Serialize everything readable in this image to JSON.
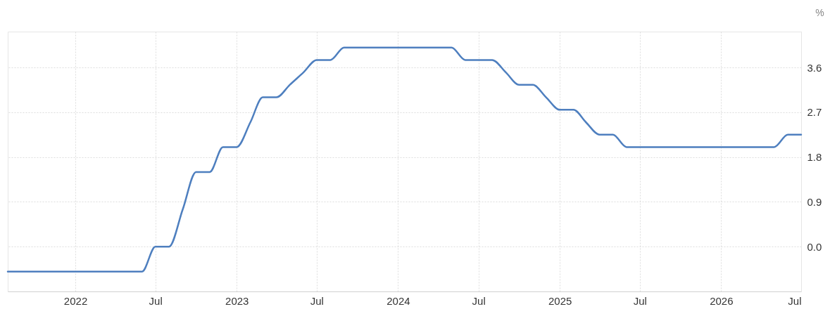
{
  "chart_data": {
    "type": "line",
    "ylabel": "%",
    "x": [
      "2021-08",
      "2021-09",
      "2021-10",
      "2021-11",
      "2021-12",
      "2022-01",
      "2022-02",
      "2022-03",
      "2022-04",
      "2022-05",
      "2022-06",
      "2022-07",
      "2022-08",
      "2022-09",
      "2022-10",
      "2022-11",
      "2022-12",
      "2023-01",
      "2023-02",
      "2023-03",
      "2023-04",
      "2023-05",
      "2023-06",
      "2023-07",
      "2023-08",
      "2023-09",
      "2023-10",
      "2023-11",
      "2023-12",
      "2024-01",
      "2024-02",
      "2024-03",
      "2024-04",
      "2024-05",
      "2024-06",
      "2024-07",
      "2024-08",
      "2024-09",
      "2024-10",
      "2024-11",
      "2024-12",
      "2025-01",
      "2025-02",
      "2025-03",
      "2025-04",
      "2025-05",
      "2025-06",
      "2025-07",
      "2025-08",
      "2025-09",
      "2025-10",
      "2025-11",
      "2025-12",
      "2026-01",
      "2026-02",
      "2026-03",
      "2026-04",
      "2026-05",
      "2026-06",
      "2026-07"
    ],
    "series": [
      {
        "color": "#4e7fbf",
        "values": [
          -0.5,
          -0.5,
          -0.5,
          -0.5,
          -0.5,
          -0.5,
          -0.5,
          -0.5,
          -0.5,
          -0.5,
          -0.5,
          0,
          0,
          0.75,
          1.5,
          1.5,
          2.0,
          2.0,
          2.5,
          3.0,
          3.0,
          3.25,
          3.5,
          3.75,
          3.75,
          4.0,
          4.0,
          4.0,
          4.0,
          4.0,
          4.0,
          4.0,
          4.0,
          4.0,
          3.75,
          3.75,
          3.75,
          3.5,
          3.25,
          3.25,
          3.0,
          2.75,
          2.75,
          2.5,
          2.25,
          2.25,
          2.0,
          2.0,
          2.0,
          2.0,
          2.0,
          2.0,
          2.0,
          2.0,
          2.0,
          2.0,
          2.0,
          2.0,
          2.25,
          2.25
        ]
      }
    ],
    "xlim": [
      "2021-08",
      "2026-07"
    ],
    "ylim": [
      -0.9,
      4.32
    ],
    "xticks": [
      {
        "value": "2022-01",
        "label": "2022"
      },
      {
        "value": "2022-07",
        "label": "Jul"
      },
      {
        "value": "2023-01",
        "label": "2023"
      },
      {
        "value": "2023-07",
        "label": "Jul"
      },
      {
        "value": "2024-01",
        "label": "2024"
      },
      {
        "value": "2024-07",
        "label": "Jul"
      },
      {
        "value": "2025-01",
        "label": "2025"
      },
      {
        "value": "2025-07",
        "label": "Jul"
      },
      {
        "value": "2026-01",
        "label": "2026"
      },
      {
        "value": "2026-07",
        "label": "Jul"
      }
    ],
    "yticks": [
      {
        "value": 0,
        "label": "0.0"
      },
      0.9,
      1.8,
      2.7,
      3.6
    ],
    "grid": true,
    "line_style": "solid"
  }
}
